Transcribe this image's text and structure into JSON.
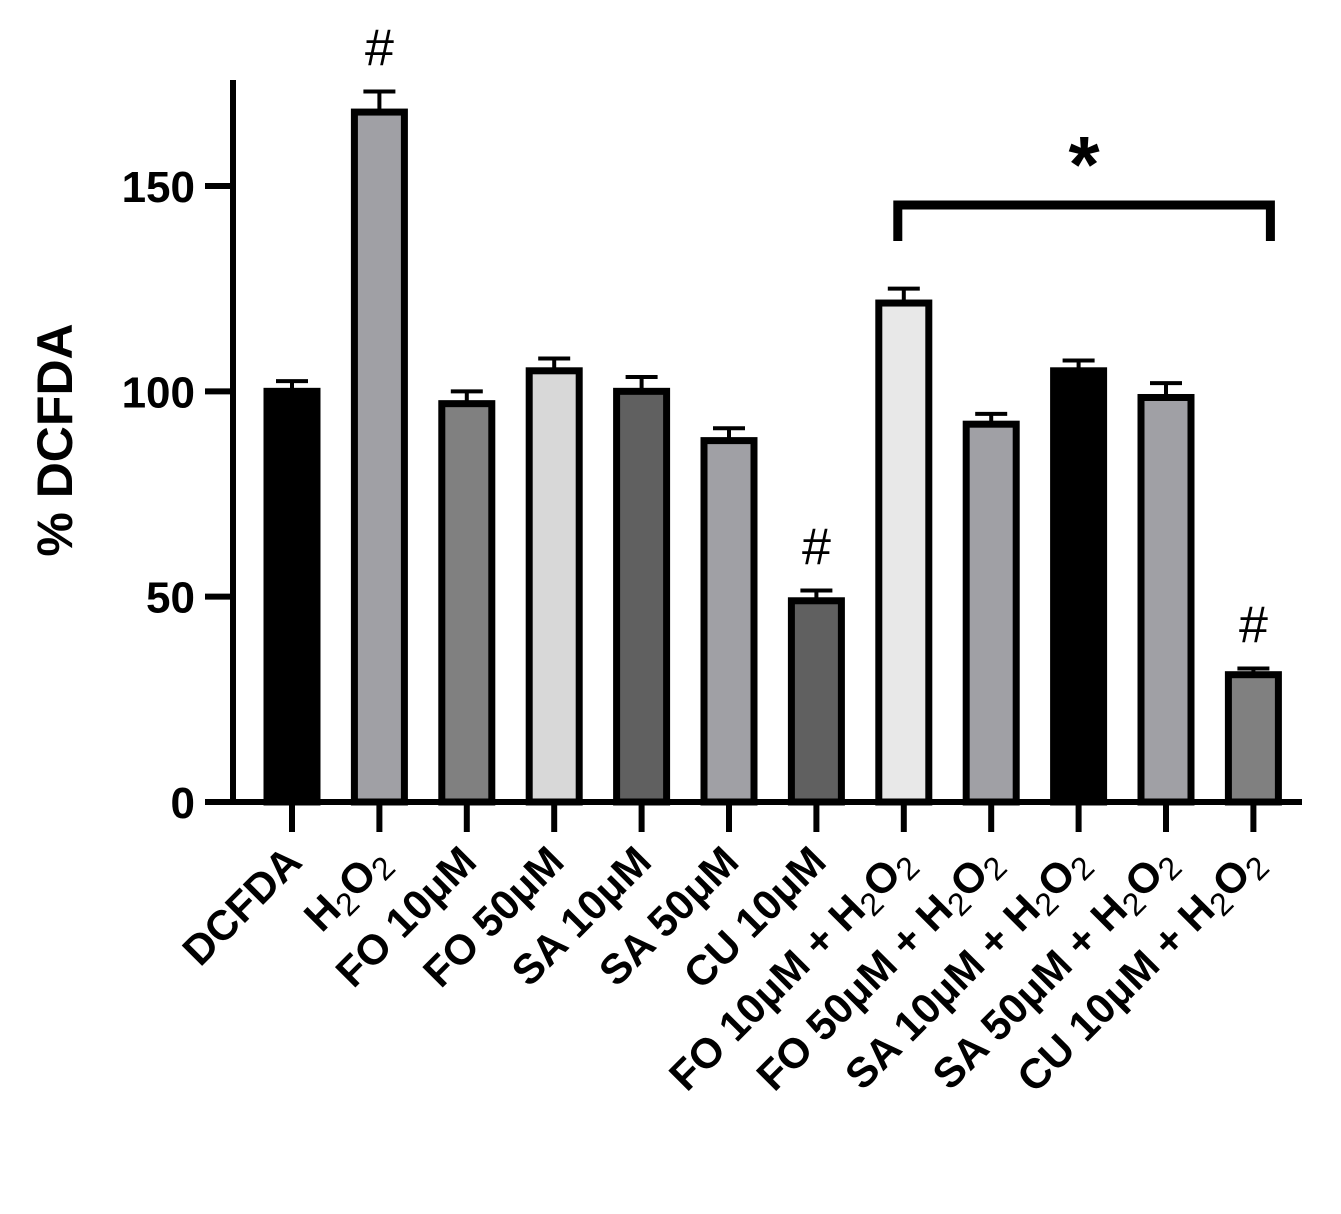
{
  "chart_data": {
    "type": "bar",
    "title": "",
    "xlabel": "",
    "ylabel": "% DCFDA",
    "ylim": [
      0,
      175
    ],
    "yticks": [
      0,
      50,
      100,
      150
    ],
    "grid": false,
    "legend": "none",
    "categories": [
      {
        "label": "DCFDA",
        "subscript": false
      },
      {
        "label": "H2O2",
        "subscript": true,
        "prefix": "H",
        "sub1": "2",
        "mid": "O",
        "sub2": "2"
      },
      {
        "label": "FO 10μM",
        "subscript": false
      },
      {
        "label": "FO 50μM",
        "subscript": false
      },
      {
        "label": "SA 10μM",
        "subscript": false
      },
      {
        "label": "SA 50μM",
        "subscript": false
      },
      {
        "label": "CU 10μM",
        "subscript": false
      },
      {
        "label": "FO 10μM + H2O2",
        "subscript": true,
        "prefix": "FO 10μM + H",
        "sub1": "2",
        "mid": "O",
        "sub2": "2"
      },
      {
        "label": "FO 50μM + H2O2",
        "subscript": true,
        "prefix": "FO 50μM + H",
        "sub1": "2",
        "mid": "O",
        "sub2": "2"
      },
      {
        "label": "SA 10μM + H2O2",
        "subscript": true,
        "prefix": "SA 10μM + H",
        "sub1": "2",
        "mid": "O",
        "sub2": "2"
      },
      {
        "label": "SA 50μM + H2O2",
        "subscript": true,
        "prefix": "SA 50μM + H",
        "sub1": "2",
        "mid": "O",
        "sub2": "2"
      },
      {
        "label": "CU 10μM + H2O2",
        "subscript": true,
        "prefix": "CU 10μM + H",
        "sub1": "2",
        "mid": "O",
        "sub2": "2"
      }
    ],
    "values": [
      100,
      168,
      97,
      105,
      100,
      88,
      49,
      121.5,
      92,
      105,
      98.5,
      31
    ],
    "errors": [
      2.5,
      5,
      3,
      3,
      3.5,
      3,
      2.5,
      3.5,
      2.5,
      2.5,
      3.5,
      1.5
    ],
    "bar_colors": [
      "#000000",
      "#a0a0a5",
      "#808080",
      "#d8d8d8",
      "#606060",
      "#a0a0a5",
      "#606060",
      "#e8e8e8",
      "#a0a0a5",
      "#000000",
      "#a0a0a5",
      "#808080"
    ],
    "annotations": [
      {
        "index": 1,
        "text": "#"
      },
      {
        "index": 6,
        "text": "#"
      },
      {
        "index": 11,
        "text": "#"
      }
    ],
    "bracket": {
      "from": 7,
      "to": 11,
      "text": "*"
    }
  }
}
